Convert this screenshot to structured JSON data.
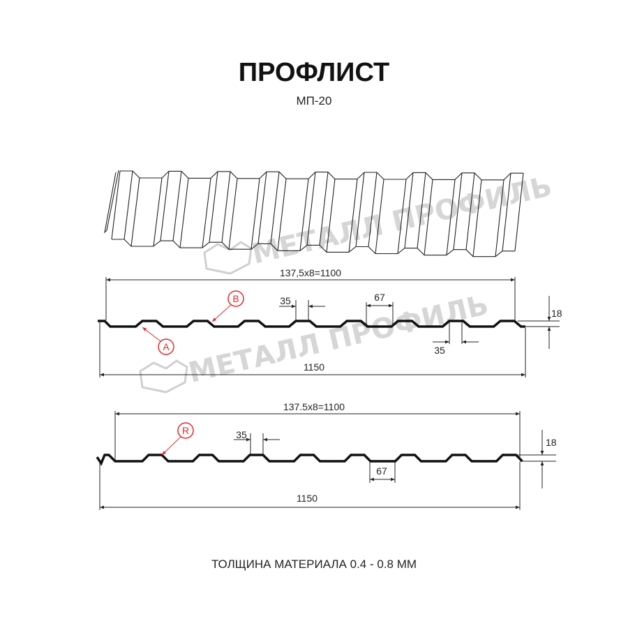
{
  "title": "ПРОФЛИСТ",
  "subtitle": "МП-20",
  "footer": "ТОЛЩИНА МАТЕРИАЛА 0.4 - 0.8 ММ",
  "watermark": "МЕТАЛЛ ПРОФИЛЬ",
  "profile_a": {
    "pitch_label": "137,5x8=1100",
    "width_label": "1150",
    "top_width_label": "35",
    "bottom_top_width_label": "35",
    "valley_width_label": "67",
    "height_label": "18",
    "marker_a": "A",
    "marker_b": "B"
  },
  "profile_r": {
    "pitch_label": "137.5x8=1100",
    "width_label": "1150",
    "top_width_label": "35",
    "valley_width_label": "67",
    "height_label": "18",
    "marker_r": "R"
  },
  "colors": {
    "marker": "#e8262a",
    "line": "#111111",
    "watermark": "#cfcfcf"
  }
}
